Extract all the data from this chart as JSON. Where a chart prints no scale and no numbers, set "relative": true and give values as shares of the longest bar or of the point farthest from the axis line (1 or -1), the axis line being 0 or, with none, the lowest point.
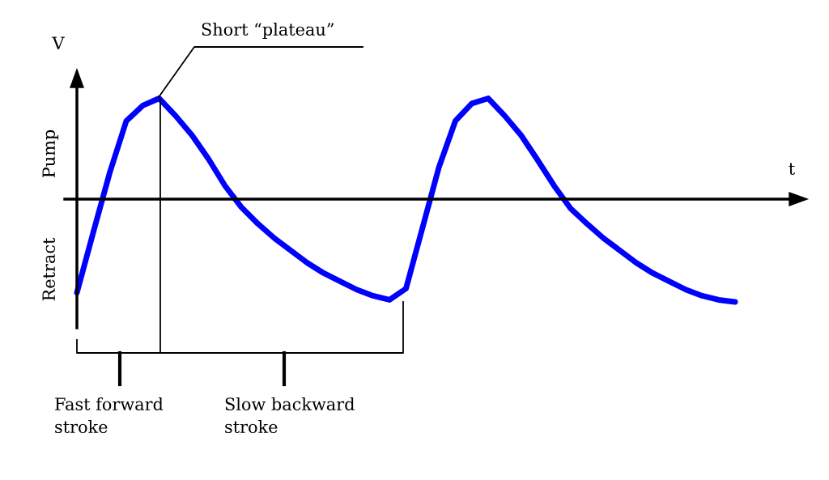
{
  "chart_data": {
    "type": "line",
    "relative": true,
    "xlabel": "t",
    "ylabel": "V",
    "categories": [
      null,
      null,
      null,
      null,
      null,
      null,
      null,
      null,
      null,
      null,
      null,
      null,
      null,
      null,
      null,
      null,
      null,
      null,
      null,
      null,
      null,
      null,
      null,
      null,
      null,
      null,
      null,
      null,
      null,
      null,
      null,
      null,
      null,
      null,
      null,
      null,
      null,
      null,
      null,
      null,
      null
    ],
    "series": [
      {
        "color": "#0000ff",
        "values": [
          -0.91,
          -0.32,
          0.26,
          0.76,
          0.91,
          0.98,
          0.81,
          0.62,
          0.39,
          0.13,
          -0.08,
          -0.24,
          -0.38,
          -0.5,
          -0.62,
          -0.72,
          -0.8,
          -0.88,
          -0.94,
          -0.98,
          -0.87,
          -0.28,
          0.31,
          0.76,
          0.93,
          0.98,
          0.81,
          0.62,
          0.38,
          0.13,
          -0.09,
          -0.24,
          -0.38,
          -0.5,
          -0.62,
          -0.72,
          -0.8,
          -0.88,
          -0.94,
          -0.98,
          -1
        ]
      }
    ],
    "annotations": [
      "Pump",
      "Retract",
      "Short “plateau”",
      "Fast forward\nstroke",
      "Slow backward\nstroke"
    ],
    "legend": false,
    "marker": "none",
    "line_style": "solid"
  }
}
